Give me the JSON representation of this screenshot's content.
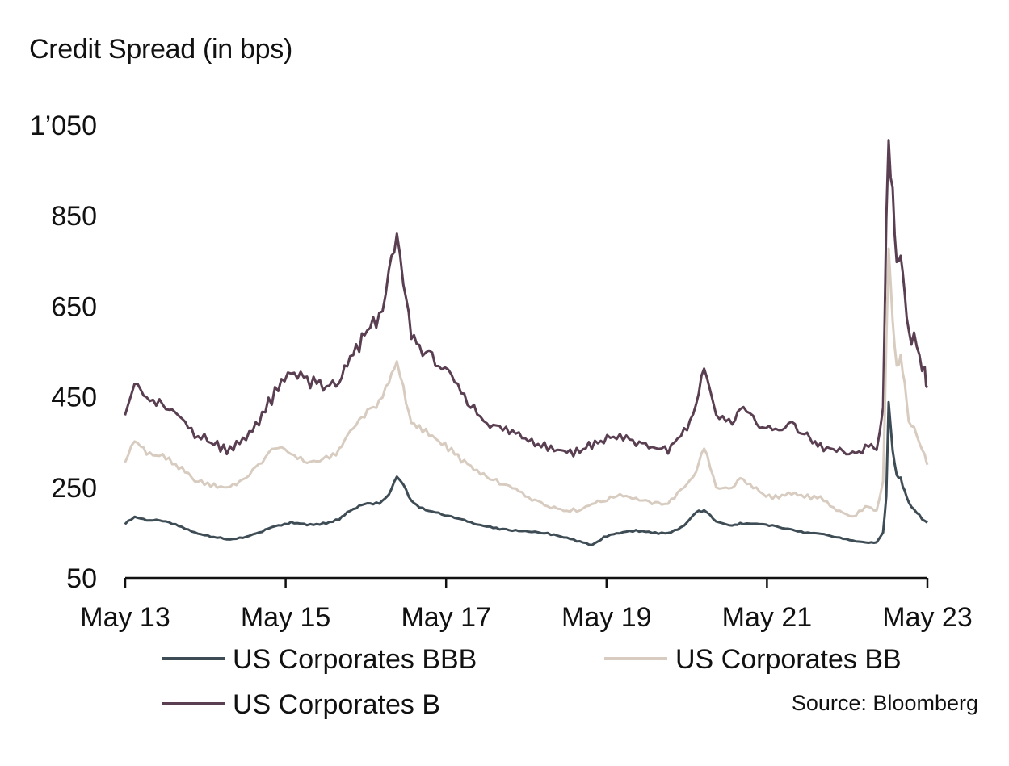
{
  "chart_data": {
    "type": "line",
    "title": "Credit Spread (in bps)",
    "xlabel": "",
    "ylabel": "Credit Spread (in bps)",
    "ylim": [
      50,
      1050
    ],
    "yticks": [
      50,
      250,
      450,
      650,
      850,
      1050
    ],
    "ytick_labels": [
      "50",
      "250",
      "450",
      "650",
      "850",
      "1’050"
    ],
    "xlim": [
      2013.333,
      2023.333
    ],
    "xticks": [
      2013.333,
      2015.333,
      2017.333,
      2019.333,
      2021.333,
      2023.333
    ],
    "xtick_labels": [
      "May 13",
      "May 15",
      "May 17",
      "May 19",
      "May 21",
      "May 23"
    ],
    "grid": false,
    "legend_position": "bottom",
    "source": "Source: Bloomberg",
    "series": [
      {
        "name": "US Corporates BBB",
        "color": "#3e4c55",
        "points": [
          [
            2013.33,
            170
          ],
          [
            2013.45,
            185
          ],
          [
            2013.6,
            178
          ],
          [
            2013.8,
            176
          ],
          [
            2014.0,
            165
          ],
          [
            2014.2,
            150
          ],
          [
            2014.4,
            142
          ],
          [
            2014.6,
            135
          ],
          [
            2014.8,
            138
          ],
          [
            2015.0,
            150
          ],
          [
            2015.2,
            165
          ],
          [
            2015.4,
            172
          ],
          [
            2015.6,
            168
          ],
          [
            2015.8,
            170
          ],
          [
            2016.0,
            180
          ],
          [
            2016.1,
            195
          ],
          [
            2016.25,
            210
          ],
          [
            2016.35,
            215
          ],
          [
            2016.5,
            215
          ],
          [
            2016.62,
            235
          ],
          [
            2016.72,
            275
          ],
          [
            2016.8,
            255
          ],
          [
            2016.9,
            220
          ],
          [
            2017.0,
            205
          ],
          [
            2017.2,
            195
          ],
          [
            2017.4,
            185
          ],
          [
            2017.6,
            175
          ],
          [
            2017.8,
            165
          ],
          [
            2018.0,
            158
          ],
          [
            2018.2,
            155
          ],
          [
            2018.4,
            152
          ],
          [
            2018.6,
            148
          ],
          [
            2018.8,
            140
          ],
          [
            2019.0,
            130
          ],
          [
            2019.15,
            122
          ],
          [
            2019.3,
            140
          ],
          [
            2019.5,
            150
          ],
          [
            2019.7,
            155
          ],
          [
            2019.9,
            150
          ],
          [
            2020.1,
            148
          ],
          [
            2020.3,
            165
          ],
          [
            2020.45,
            195
          ],
          [
            2020.55,
            200
          ],
          [
            2020.7,
            175
          ],
          [
            2020.9,
            165
          ],
          [
            2021.0,
            170
          ],
          [
            2021.2,
            170
          ],
          [
            2021.4,
            165
          ],
          [
            2021.6,
            158
          ],
          [
            2021.8,
            150
          ],
          [
            2022.0,
            148
          ],
          [
            2022.2,
            140
          ],
          [
            2022.4,
            132
          ],
          [
            2022.6,
            128
          ],
          [
            2022.7,
            128
          ],
          [
            2022.78,
            150
          ],
          [
            2022.82,
            230
          ],
          [
            2022.85,
            435
          ],
          [
            2022.9,
            330
          ],
          [
            2022.95,
            275
          ],
          [
            2023.0,
            270
          ],
          [
            2023.05,
            240
          ],
          [
            2023.1,
            215
          ],
          [
            2023.2,
            195
          ],
          [
            2023.3,
            175
          ],
          [
            2023.333,
            172
          ]
        ]
      },
      {
        "name": "US Corporates BB",
        "color": "#d8ccc0",
        "points": [
          [
            2013.33,
            305
          ],
          [
            2013.45,
            355
          ],
          [
            2013.6,
            325
          ],
          [
            2013.8,
            320
          ],
          [
            2014.0,
            295
          ],
          [
            2014.2,
            265
          ],
          [
            2014.4,
            255
          ],
          [
            2014.6,
            250
          ],
          [
            2014.8,
            265
          ],
          [
            2015.0,
            300
          ],
          [
            2015.2,
            340
          ],
          [
            2015.4,
            325
          ],
          [
            2015.6,
            305
          ],
          [
            2015.8,
            310
          ],
          [
            2016.0,
            330
          ],
          [
            2016.1,
            365
          ],
          [
            2016.25,
            400
          ],
          [
            2016.35,
            415
          ],
          [
            2016.5,
            440
          ],
          [
            2016.62,
            480
          ],
          [
            2016.72,
            530
          ],
          [
            2016.8,
            470
          ],
          [
            2016.9,
            390
          ],
          [
            2017.0,
            380
          ],
          [
            2017.2,
            360
          ],
          [
            2017.4,
            330
          ],
          [
            2017.6,
            300
          ],
          [
            2017.8,
            275
          ],
          [
            2018.0,
            260
          ],
          [
            2018.2,
            245
          ],
          [
            2018.4,
            225
          ],
          [
            2018.6,
            210
          ],
          [
            2018.8,
            200
          ],
          [
            2019.0,
            200
          ],
          [
            2019.15,
            215
          ],
          [
            2019.3,
            220
          ],
          [
            2019.5,
            235
          ],
          [
            2019.7,
            225
          ],
          [
            2019.9,
            215
          ],
          [
            2020.1,
            215
          ],
          [
            2020.3,
            250
          ],
          [
            2020.45,
            285
          ],
          [
            2020.55,
            340
          ],
          [
            2020.7,
            250
          ],
          [
            2020.9,
            245
          ],
          [
            2021.0,
            270
          ],
          [
            2021.2,
            245
          ],
          [
            2021.4,
            225
          ],
          [
            2021.6,
            240
          ],
          [
            2021.8,
            230
          ],
          [
            2022.0,
            225
          ],
          [
            2022.2,
            200
          ],
          [
            2022.4,
            185
          ],
          [
            2022.6,
            210
          ],
          [
            2022.7,
            195
          ],
          [
            2022.78,
            260
          ],
          [
            2022.82,
            560
          ],
          [
            2022.85,
            780
          ],
          [
            2022.9,
            620
          ],
          [
            2022.95,
            520
          ],
          [
            2023.0,
            540
          ],
          [
            2023.05,
            480
          ],
          [
            2023.1,
            400
          ],
          [
            2023.2,
            365
          ],
          [
            2023.3,
            320
          ],
          [
            2023.333,
            300
          ]
        ]
      },
      {
        "name": "US Corporates B",
        "color": "#5a3f52",
        "points": [
          [
            2013.33,
            420
          ],
          [
            2013.45,
            480
          ],
          [
            2013.6,
            445
          ],
          [
            2013.8,
            430
          ],
          [
            2014.0,
            405
          ],
          [
            2014.2,
            370
          ],
          [
            2014.4,
            350
          ],
          [
            2014.6,
            335
          ],
          [
            2014.8,
            350
          ],
          [
            2015.0,
            400
          ],
          [
            2015.2,
            455
          ],
          [
            2015.4,
            510
          ],
          [
            2015.6,
            485
          ],
          [
            2015.8,
            470
          ],
          [
            2016.0,
            480
          ],
          [
            2016.1,
            520
          ],
          [
            2016.25,
            560
          ],
          [
            2016.35,
            600
          ],
          [
            2016.5,
            620
          ],
          [
            2016.62,
            720
          ],
          [
            2016.72,
            800
          ],
          [
            2016.8,
            700
          ],
          [
            2016.9,
            590
          ],
          [
            2017.0,
            560
          ],
          [
            2017.2,
            530
          ],
          [
            2017.4,
            490
          ],
          [
            2017.6,
            440
          ],
          [
            2017.8,
            400
          ],
          [
            2018.0,
            380
          ],
          [
            2018.2,
            370
          ],
          [
            2018.4,
            355
          ],
          [
            2018.6,
            340
          ],
          [
            2018.8,
            330
          ],
          [
            2019.0,
            330
          ],
          [
            2019.15,
            345
          ],
          [
            2019.3,
            355
          ],
          [
            2019.5,
            360
          ],
          [
            2019.7,
            350
          ],
          [
            2019.9,
            340
          ],
          [
            2020.1,
            330
          ],
          [
            2020.3,
            375
          ],
          [
            2020.45,
            420
          ],
          [
            2020.55,
            520
          ],
          [
            2020.7,
            410
          ],
          [
            2020.9,
            395
          ],
          [
            2021.0,
            425
          ],
          [
            2021.2,
            395
          ],
          [
            2021.4,
            375
          ],
          [
            2021.6,
            390
          ],
          [
            2021.8,
            370
          ],
          [
            2021.9,
            350
          ],
          [
            2022.0,
            340
          ],
          [
            2022.2,
            330
          ],
          [
            2022.4,
            320
          ],
          [
            2022.6,
            345
          ],
          [
            2022.7,
            330
          ],
          [
            2022.78,
            420
          ],
          [
            2022.82,
            840
          ],
          [
            2022.85,
            1020
          ],
          [
            2022.9,
            900
          ],
          [
            2022.95,
            740
          ],
          [
            2023.0,
            760
          ],
          [
            2023.05,
            680
          ],
          [
            2023.1,
            600
          ],
          [
            2023.2,
            560
          ],
          [
            2023.3,
            510
          ],
          [
            2023.333,
            470
          ]
        ]
      }
    ]
  }
}
